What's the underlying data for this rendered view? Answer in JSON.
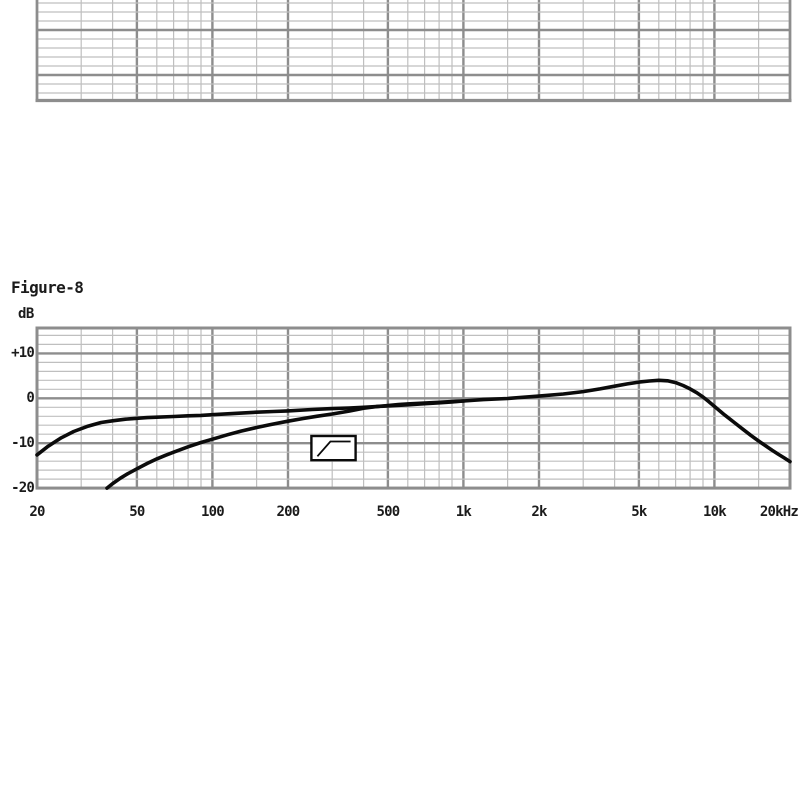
{
  "figure_label": "Figure-8",
  "y_axis_unit": "dB",
  "top_partial_grid": {
    "visible": true
  },
  "colors": {
    "background": "#ffffff",
    "curve": "#0b0b0b",
    "grid_minor": "#bfbfbf",
    "grid_major": "#8d8d8d",
    "border": "#8d8d8d",
    "text": "#1b1b1b"
  },
  "chart_data": {
    "type": "line",
    "title": "Figure-8",
    "xlabel": "",
    "ylabel": "dB",
    "x_scale": "log",
    "x_range_hz": [
      20,
      20000
    ],
    "y_range_db": [
      -20,
      15.7
    ],
    "grid": true,
    "legend_position": "none",
    "x_tick_labels": [
      "20",
      "50",
      "100",
      "200",
      "500",
      "1k",
      "2k",
      "5k",
      "10k",
      "20kHz"
    ],
    "x_tick_values_hz": [
      20,
      50,
      100,
      200,
      500,
      1000,
      2000,
      5000,
      10000,
      20000
    ],
    "x_minor_gridlines_hz": [
      30,
      40,
      60,
      70,
      80,
      90,
      150,
      300,
      400,
      600,
      700,
      800,
      900,
      1500,
      3000,
      4000,
      6000,
      7000,
      8000,
      9000,
      15000
    ],
    "y_tick_labels": [
      "+10",
      "0",
      "-10",
      "-20"
    ],
    "y_tick_values_db": [
      10,
      0,
      -10,
      -20
    ],
    "y_minor_step_db": 2,
    "series": [
      {
        "name": "frequency-response",
        "points": [
          [
            20,
            -12.6
          ],
          [
            22,
            -10.8
          ],
          [
            25,
            -8.8
          ],
          [
            28,
            -7.4
          ],
          [
            32,
            -6.2
          ],
          [
            36,
            -5.4
          ],
          [
            40,
            -5.0
          ],
          [
            45,
            -4.65
          ],
          [
            50,
            -4.45
          ],
          [
            55,
            -4.3
          ],
          [
            60,
            -4.2
          ],
          [
            70,
            -4.05
          ],
          [
            80,
            -3.9
          ],
          [
            90,
            -3.8
          ],
          [
            100,
            -3.65
          ],
          [
            120,
            -3.4
          ],
          [
            150,
            -3.1
          ],
          [
            175,
            -2.95
          ],
          [
            200,
            -2.8
          ],
          [
            250,
            -2.5
          ],
          [
            300,
            -2.3
          ],
          [
            350,
            -2.15
          ],
          [
            400,
            -2.0
          ],
          [
            450,
            -1.85
          ],
          [
            500,
            -1.7
          ],
          [
            600,
            -1.45
          ],
          [
            700,
            -1.2
          ],
          [
            800,
            -1.0
          ],
          [
            900,
            -0.8
          ],
          [
            1000,
            -0.6
          ],
          [
            1200,
            -0.3
          ],
          [
            1500,
            -0.05
          ],
          [
            2000,
            0.5
          ],
          [
            2500,
            0.95
          ],
          [
            3000,
            1.5
          ],
          [
            3500,
            2.1
          ],
          [
            4000,
            2.7
          ],
          [
            4500,
            3.2
          ],
          [
            5000,
            3.6
          ],
          [
            5500,
            3.85
          ],
          [
            6000,
            4.0
          ],
          [
            6500,
            3.9
          ],
          [
            7000,
            3.5
          ],
          [
            7500,
            2.85
          ],
          [
            8000,
            2.1
          ],
          [
            8500,
            1.25
          ],
          [
            9000,
            0.3
          ],
          [
            9500,
            -0.75
          ],
          [
            10000,
            -1.8
          ],
          [
            11000,
            -3.75
          ],
          [
            12000,
            -5.4
          ],
          [
            13000,
            -6.9
          ],
          [
            14000,
            -8.3
          ],
          [
            15000,
            -9.5
          ],
          [
            16000,
            -10.6
          ],
          [
            17000,
            -11.6
          ],
          [
            18000,
            -12.5
          ],
          [
            19000,
            -13.3
          ],
          [
            20000,
            -14.1
          ]
        ]
      },
      {
        "name": "frequency-response-with-low-cut",
        "points": [
          [
            38,
            -20
          ],
          [
            40,
            -19
          ],
          [
            43,
            -17.8
          ],
          [
            46,
            -16.8
          ],
          [
            50,
            -15.7
          ],
          [
            55,
            -14.5
          ],
          [
            60,
            -13.5
          ],
          [
            65,
            -12.7
          ],
          [
            70,
            -12.0
          ],
          [
            80,
            -10.8
          ],
          [
            90,
            -9.85
          ],
          [
            100,
            -9.1
          ],
          [
            115,
            -8.1
          ],
          [
            130,
            -7.3
          ],
          [
            150,
            -6.5
          ],
          [
            170,
            -5.85
          ],
          [
            200,
            -5.1
          ],
          [
            230,
            -4.5
          ],
          [
            260,
            -4.0
          ],
          [
            300,
            -3.5
          ],
          [
            350,
            -2.85
          ],
          [
            400,
            -2.2
          ],
          [
            450,
            -1.85
          ],
          [
            500,
            -1.6
          ],
          [
            550,
            -1.4
          ],
          [
            600,
            -1.25
          ],
          [
            700,
            -1.05
          ],
          [
            800,
            -0.9
          ],
          [
            900,
            -0.72
          ],
          [
            1000,
            -0.6
          ]
        ]
      }
    ],
    "annotations": [
      {
        "type": "low-cut-filter-icon",
        "freq_range_hz": [
          248,
          372
        ],
        "db_range": [
          -13.8,
          -8.4
        ]
      }
    ]
  }
}
